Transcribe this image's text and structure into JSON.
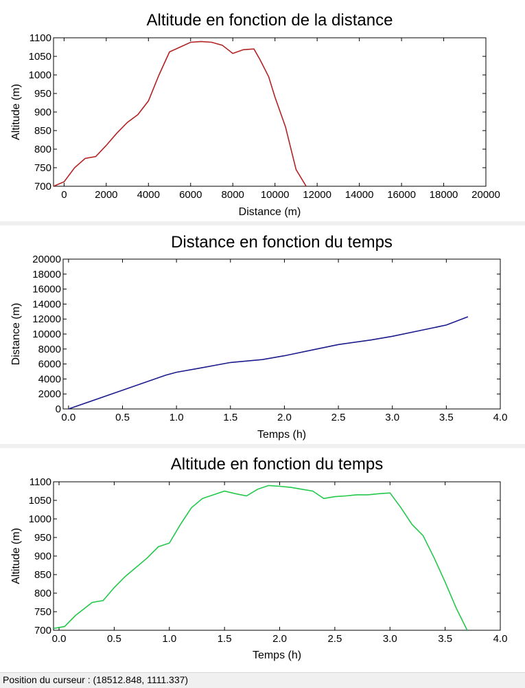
{
  "chart_data": [
    {
      "type": "line",
      "title": "Altitude en fonction de la distance",
      "xlabel": "Distance (m)",
      "ylabel": "Altitude (m)",
      "xlim": [
        -500,
        20000
      ],
      "ylim": [
        700,
        1100
      ],
      "xticks": [
        0,
        2000,
        4000,
        6000,
        8000,
        10000,
        12000,
        14000,
        16000,
        18000,
        20000
      ],
      "yticks": [
        700,
        750,
        800,
        850,
        900,
        950,
        1000,
        1050,
        1100
      ],
      "color": "#b22222",
      "series": [
        {
          "x": [
            -500,
            0,
            500,
            1000,
            1500,
            2000,
            2500,
            3000,
            3500,
            4000,
            4500,
            5000,
            5500,
            6000,
            6500,
            7000,
            7500,
            8000,
            8500,
            9000,
            9300,
            9700,
            10000,
            10500,
            11000,
            11500
          ],
          "y": [
            700,
            712,
            750,
            775,
            780,
            810,
            843,
            872,
            893,
            930,
            1000,
            1062,
            1075,
            1088,
            1090,
            1088,
            1080,
            1058,
            1068,
            1070,
            1040,
            995,
            940,
            860,
            745,
            698
          ]
        }
      ]
    },
    {
      "type": "line",
      "title": "Distance en fonction du temps",
      "xlabel": "Temps (h)",
      "ylabel": "Distance (m)",
      "xlim": [
        -0.05,
        4.0
      ],
      "ylim": [
        0,
        20000
      ],
      "xticks": [
        0.0,
        0.5,
        1.0,
        1.5,
        2.0,
        2.5,
        3.0,
        3.5,
        4.0
      ],
      "yticks": [
        0,
        2000,
        4000,
        6000,
        8000,
        10000,
        12000,
        14000,
        16000,
        18000,
        20000
      ],
      "color": "#1a1a8c",
      "series": [
        {
          "x": [
            0.0,
            0.5,
            0.9,
            1.0,
            1.2,
            1.5,
            1.8,
            2.0,
            2.3,
            2.5,
            2.8,
            3.0,
            3.3,
            3.5,
            3.7
          ],
          "y": [
            0,
            2500,
            4500,
            4900,
            5400,
            6200,
            6600,
            7100,
            8000,
            8600,
            9200,
            9700,
            10600,
            11200,
            12300
          ]
        }
      ]
    },
    {
      "type": "line",
      "title": "Altitude en fonction du temps",
      "xlabel": "Temps (h)",
      "ylabel": "Altitude (m)",
      "xlim": [
        -0.05,
        4.0
      ],
      "ylim": [
        700,
        1100
      ],
      "xticks": [
        0.0,
        0.5,
        1.0,
        1.5,
        2.0,
        2.5,
        3.0,
        3.5,
        4.0
      ],
      "yticks": [
        700,
        750,
        800,
        850,
        900,
        950,
        1000,
        1050,
        1100
      ],
      "color": "#22c84a",
      "series": [
        {
          "x": [
            -0.05,
            0.05,
            0.15,
            0.3,
            0.4,
            0.5,
            0.6,
            0.7,
            0.8,
            0.9,
            1.0,
            1.1,
            1.2,
            1.3,
            1.4,
            1.5,
            1.6,
            1.7,
            1.8,
            1.9,
            2.0,
            2.1,
            2.2,
            2.3,
            2.4,
            2.5,
            2.6,
            2.7,
            2.8,
            2.9,
            3.0,
            3.1,
            3.2,
            3.3,
            3.4,
            3.5,
            3.6,
            3.7
          ],
          "y": [
            705,
            710,
            740,
            775,
            780,
            815,
            845,
            870,
            895,
            925,
            935,
            985,
            1030,
            1055,
            1065,
            1075,
            1068,
            1062,
            1080,
            1090,
            1088,
            1085,
            1080,
            1075,
            1055,
            1060,
            1062,
            1065,
            1065,
            1068,
            1070,
            1030,
            985,
            955,
            895,
            830,
            760,
            700
          ]
        }
      ]
    }
  ],
  "status": {
    "text": "Position du curseur : (18512.848, 1111.337)"
  }
}
